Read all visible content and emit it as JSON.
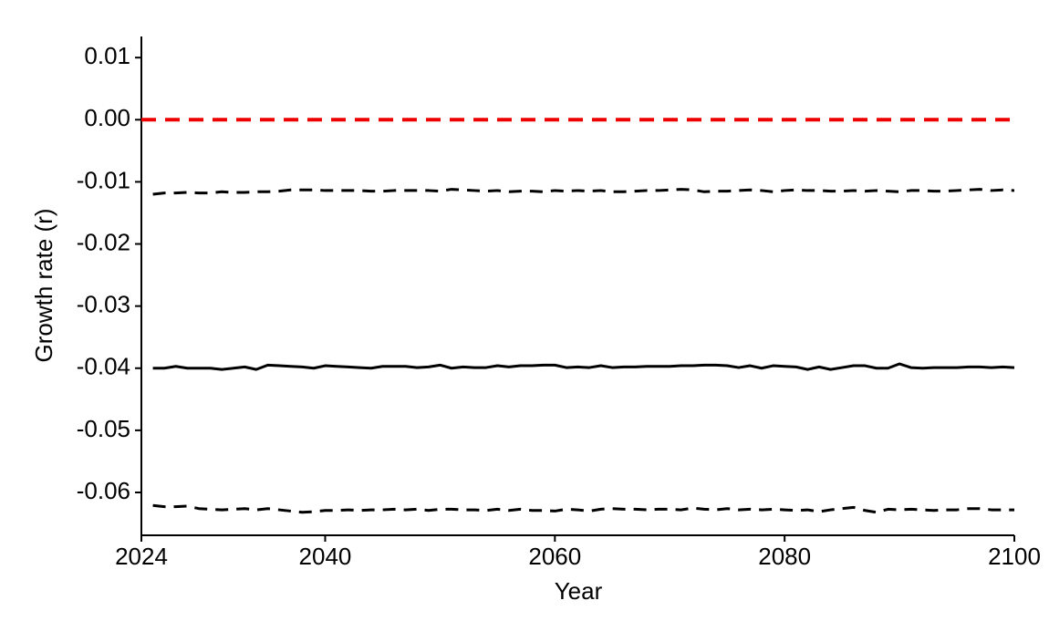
{
  "chart_data": {
    "type": "line",
    "xlabel": "Year",
    "ylabel": "Growth rate (r)",
    "x": [
      2025,
      2026,
      2027,
      2028,
      2029,
      2030,
      2031,
      2032,
      2033,
      2034,
      2035,
      2036,
      2037,
      2038,
      2039,
      2040,
      2041,
      2042,
      2043,
      2044,
      2045,
      2046,
      2047,
      2048,
      2049,
      2050,
      2051,
      2052,
      2053,
      2054,
      2055,
      2056,
      2057,
      2058,
      2059,
      2060,
      2061,
      2062,
      2063,
      2064,
      2065,
      2066,
      2067,
      2068,
      2069,
      2070,
      2071,
      2072,
      2073,
      2074,
      2075,
      2076,
      2077,
      2078,
      2079,
      2080,
      2081,
      2082,
      2083,
      2084,
      2085,
      2086,
      2087,
      2088,
      2089,
      2090,
      2091,
      2092,
      2093,
      2094,
      2095,
      2096,
      2097,
      2098,
      2099,
      2100
    ],
    "series": [
      {
        "color": "#000000",
        "linestyle": "solid",
        "values": [
          -0.04,
          -0.04,
          -0.0397,
          -0.04,
          -0.04,
          -0.04,
          -0.0402,
          -0.04,
          -0.0398,
          -0.0402,
          -0.0395,
          -0.0396,
          -0.0397,
          -0.0398,
          -0.04,
          -0.0396,
          -0.0397,
          -0.0398,
          -0.0399,
          -0.04,
          -0.0397,
          -0.0397,
          -0.0397,
          -0.0399,
          -0.0398,
          -0.0395,
          -0.04,
          -0.0398,
          -0.0399,
          -0.0399,
          -0.0396,
          -0.0398,
          -0.0396,
          -0.0396,
          -0.0395,
          -0.0395,
          -0.0399,
          -0.0398,
          -0.0399,
          -0.0396,
          -0.0399,
          -0.0398,
          -0.0398,
          -0.0397,
          -0.0397,
          -0.0397,
          -0.0396,
          -0.0396,
          -0.0395,
          -0.0395,
          -0.0396,
          -0.0399,
          -0.0396,
          -0.04,
          -0.0396,
          -0.0397,
          -0.0398,
          -0.0402,
          -0.0398,
          -0.0402,
          -0.0399,
          -0.0396,
          -0.0396,
          -0.04,
          -0.04,
          -0.0393,
          -0.0399,
          -0.04,
          -0.0399,
          -0.0399,
          -0.0399,
          -0.0398,
          -0.0398,
          -0.0399,
          -0.0398,
          -0.0399
        ]
      },
      {
        "color": "#000000",
        "linestyle": "dashed",
        "values": [
          -0.012,
          -0.0118,
          -0.0118,
          -0.0117,
          -0.0118,
          -0.0118,
          -0.0116,
          -0.0117,
          -0.0117,
          -0.0116,
          -0.0116,
          -0.0115,
          -0.0113,
          -0.0113,
          -0.0113,
          -0.0114,
          -0.0114,
          -0.0114,
          -0.0114,
          -0.0115,
          -0.0115,
          -0.0114,
          -0.0114,
          -0.0114,
          -0.0114,
          -0.0115,
          -0.0112,
          -0.0113,
          -0.0114,
          -0.0115,
          -0.0114,
          -0.0116,
          -0.0115,
          -0.0115,
          -0.0116,
          -0.0114,
          -0.0115,
          -0.0114,
          -0.0115,
          -0.0114,
          -0.0116,
          -0.0116,
          -0.0115,
          -0.0114,
          -0.0114,
          -0.0113,
          -0.0112,
          -0.0113,
          -0.0116,
          -0.0115,
          -0.0115,
          -0.0114,
          -0.0113,
          -0.0114,
          -0.0116,
          -0.0114,
          -0.0113,
          -0.0114,
          -0.0114,
          -0.0115,
          -0.0115,
          -0.0114,
          -0.0115,
          -0.0114,
          -0.0115,
          -0.0116,
          -0.0114,
          -0.0114,
          -0.0115,
          -0.0115,
          -0.0114,
          -0.0113,
          -0.0112,
          -0.0114,
          -0.0113,
          -0.0114
        ]
      },
      {
        "color": "#000000",
        "linestyle": "dashed",
        "values": [
          -0.0621,
          -0.0623,
          -0.0623,
          -0.0622,
          -0.0626,
          -0.0627,
          -0.0628,
          -0.0627,
          -0.0626,
          -0.0628,
          -0.0626,
          -0.0628,
          -0.063,
          -0.0632,
          -0.0631,
          -0.0629,
          -0.0629,
          -0.0628,
          -0.0629,
          -0.0628,
          -0.0628,
          -0.0627,
          -0.0628,
          -0.0627,
          -0.0629,
          -0.0627,
          -0.0627,
          -0.0628,
          -0.0628,
          -0.0629,
          -0.0627,
          -0.0629,
          -0.0627,
          -0.0629,
          -0.0629,
          -0.063,
          -0.0627,
          -0.0628,
          -0.063,
          -0.0627,
          -0.0626,
          -0.0627,
          -0.0627,
          -0.0628,
          -0.0627,
          -0.0627,
          -0.0628,
          -0.0625,
          -0.0627,
          -0.0628,
          -0.0626,
          -0.0628,
          -0.0627,
          -0.0628,
          -0.0627,
          -0.0628,
          -0.0629,
          -0.0628,
          -0.0631,
          -0.0628,
          -0.0626,
          -0.0624,
          -0.0629,
          -0.0632,
          -0.0627,
          -0.0628,
          -0.0627,
          -0.0628,
          -0.0629,
          -0.0628,
          -0.0628,
          -0.0626,
          -0.0626,
          -0.0628,
          -0.0628,
          -0.0628
        ]
      }
    ],
    "reference_lines": [
      {
        "value": 0,
        "color": "#ee0000",
        "linestyle": "dashed"
      }
    ],
    "xlim": [
      2024,
      2100
    ],
    "xticks": [
      2024,
      2040,
      2060,
      2080,
      2100
    ],
    "ylim": [
      -0.0669,
      0.0134
    ],
    "yticks": [
      0.01,
      {
        "value": 0,
        "label": "0.00"
      },
      -0.01,
      -0.02,
      -0.03,
      -0.04,
      -0.05,
      -0.06
    ],
    "grid": false
  }
}
